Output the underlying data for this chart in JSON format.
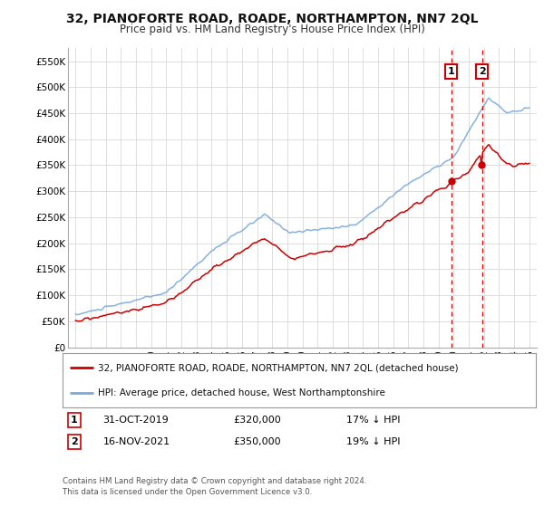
{
  "title": "32, PIANOFORTE ROAD, ROADE, NORTHAMPTON, NN7 2QL",
  "subtitle": "Price paid vs. HM Land Registry's House Price Index (HPI)",
  "title_fontsize": 10,
  "subtitle_fontsize": 8.5,
  "background_color": "#ffffff",
  "plot_bg_color": "#ffffff",
  "grid_color": "#dddddd",
  "ylim": [
    0,
    575000
  ],
  "yticks": [
    0,
    50000,
    100000,
    150000,
    200000,
    250000,
    300000,
    350000,
    400000,
    450000,
    500000,
    550000
  ],
  "ytick_labels": [
    "£0",
    "£50K",
    "£100K",
    "£150K",
    "£200K",
    "£250K",
    "£300K",
    "£350K",
    "£400K",
    "£450K",
    "£500K",
    "£550K"
  ],
  "sale1_year": 2019.83,
  "sale1_price": 320000,
  "sale2_year": 2021.87,
  "sale2_price": 350000,
  "hpi_color": "#7aaadd",
  "sale_color": "#cc0000",
  "vline_color": "#cc0000",
  "footer": "Contains HM Land Registry data © Crown copyright and database right 2024.\nThis data is licensed under the Open Government Licence v3.0.",
  "legend_label1": "32, PIANOFORTE ROAD, ROADE, NORTHAMPTON, NN7 2QL (detached house)",
  "legend_label2": "HPI: Average price, detached house, West Northamptonshire",
  "sale1_date_str": "31-OCT-2019",
  "sale1_hpi_pct": "17% ↓ HPI",
  "sale2_date_str": "16-NOV-2021",
  "sale2_hpi_pct": "19% ↓ HPI"
}
